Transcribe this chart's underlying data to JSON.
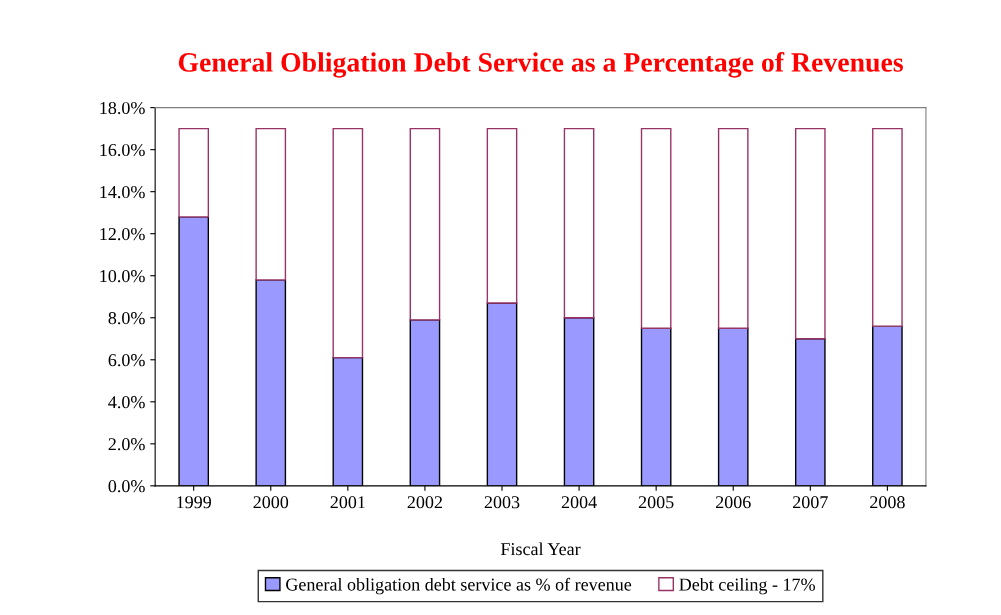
{
  "chart_data": {
    "type": "bar",
    "stacked": true,
    "title": "General Obligation Debt Service as a Percentage of Revenues",
    "xlabel": "Fiscal Year",
    "categories": [
      "1999",
      "2000",
      "2001",
      "2002",
      "2003",
      "2004",
      "2005",
      "2006",
      "2007",
      "2008"
    ],
    "series": [
      {
        "name": "General obligation debt service as % of revenue",
        "color": "#9999ff",
        "values": [
          12.8,
          9.8,
          6.1,
          7.9,
          8.7,
          8.0,
          7.5,
          7.5,
          7.0,
          7.6
        ]
      },
      {
        "name": "Debt ceiling - 17%",
        "color": "#ffffff",
        "values": [
          4.2,
          7.2,
          10.9,
          9.1,
          8.3,
          9.0,
          9.5,
          9.5,
          10.0,
          9.4
        ]
      }
    ],
    "ylim": [
      0,
      18
    ],
    "yticks": [
      {
        "value": 0,
        "label": "0.0%"
      },
      {
        "value": 2,
        "label": "2.0%"
      },
      {
        "value": 4,
        "label": "4.0%"
      },
      {
        "value": 6,
        "label": "6.0%"
      },
      {
        "value": 8,
        "label": "8.0%"
      },
      {
        "value": 10,
        "label": "10.0%"
      },
      {
        "value": 12,
        "label": "12.0%"
      },
      {
        "value": 14,
        "label": "14.0%"
      },
      {
        "value": 16,
        "label": "16.0%"
      },
      {
        "value": 18,
        "label": "18.0%"
      }
    ],
    "grid": false,
    "legend": "bottom"
  }
}
